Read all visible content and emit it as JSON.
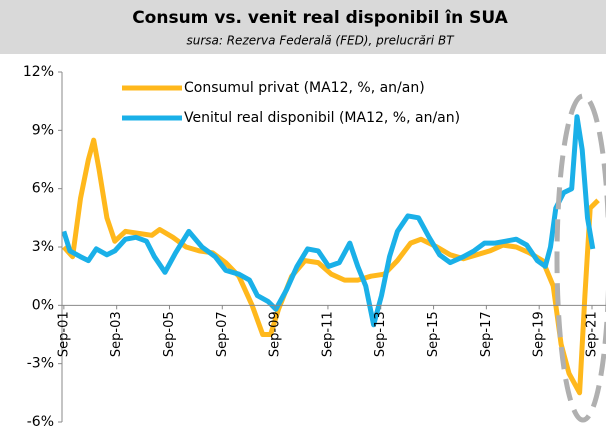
{
  "chart_data": {
    "type": "line",
    "title": "Consum vs. venit real disponibil în SUA",
    "subtitle": "sursa: Rezerva Federală (FED), prelucrări BT",
    "xlim": [
      2001.6,
      2022.2
    ],
    "xticks": [
      {
        "value": 2001.67,
        "label": "Sep-01"
      },
      {
        "value": 2003.67,
        "label": "Sep-03"
      },
      {
        "value": 2005.67,
        "label": "Sep-05"
      },
      {
        "value": 2007.67,
        "label": "Sep-07"
      },
      {
        "value": 2009.67,
        "label": "Sep-09"
      },
      {
        "value": 2011.67,
        "label": "Sep-11"
      },
      {
        "value": 2013.67,
        "label": "Sep-13"
      },
      {
        "value": 2015.67,
        "label": "Sep-15"
      },
      {
        "value": 2017.67,
        "label": "Sep-17"
      },
      {
        "value": 2019.67,
        "label": "Sep-19"
      },
      {
        "value": 2021.67,
        "label": "Sep-21"
      }
    ],
    "ylim": [
      -6,
      12
    ],
    "yticks": [
      {
        "value": 12,
        "label": "12%"
      },
      {
        "value": 9,
        "label": "9%"
      },
      {
        "value": 6,
        "label": "6%"
      },
      {
        "value": 3,
        "label": "3%"
      },
      {
        "value": 0,
        "label": "0%"
      },
      {
        "value": -3,
        "label": "-3%"
      },
      {
        "value": -6,
        "label": "-6%"
      }
    ],
    "legend": "top-left",
    "series": [
      {
        "name": "Consumul privat (MA12, %, an/an)",
        "color": "#ffb81c",
        "x": [
          2001.67,
          2002.0,
          2002.3,
          2002.6,
          2002.8,
          2003.0,
          2003.3,
          2003.6,
          2004.0,
          2004.5,
          2005.0,
          2005.3,
          2005.8,
          2006.3,
          2006.8,
          2007.3,
          2007.8,
          2008.3,
          2008.8,
          2009.2,
          2009.5,
          2009.8,
          2010.3,
          2010.8,
          2011.3,
          2011.8,
          2012.3,
          2012.8,
          2013.3,
          2013.8,
          2014.3,
          2014.8,
          2015.2,
          2015.8,
          2016.3,
          2016.8,
          2017.3,
          2017.8,
          2018.3,
          2018.8,
          2019.3,
          2019.8,
          2020.2,
          2020.5,
          2020.8,
          2021.2,
          2021.4,
          2021.6,
          2021.9
        ],
        "values": [
          3.0,
          2.5,
          5.5,
          7.5,
          8.5,
          7.0,
          4.5,
          3.3,
          3.8,
          3.7,
          3.6,
          3.9,
          3.5,
          3.0,
          2.8,
          2.7,
          2.2,
          1.5,
          0.0,
          -1.5,
          -1.5,
          -0.2,
          1.5,
          2.3,
          2.2,
          1.6,
          1.3,
          1.3,
          1.5,
          1.6,
          2.3,
          3.2,
          3.4,
          3.0,
          2.6,
          2.4,
          2.6,
          2.8,
          3.1,
          3.0,
          2.7,
          2.3,
          1.0,
          -2.0,
          -3.5,
          -4.5,
          0.5,
          5.0,
          5.4
        ]
      },
      {
        "name": "Venitul real disponibil (MA12, %, an/an)",
        "color": "#1ab0e8",
        "x": [
          2001.67,
          2001.9,
          2002.3,
          2002.6,
          2002.9,
          2003.3,
          2003.6,
          2004.0,
          2004.4,
          2004.8,
          2005.1,
          2005.5,
          2005.9,
          2006.4,
          2006.9,
          2007.4,
          2007.8,
          2008.3,
          2008.7,
          2009.0,
          2009.4,
          2009.7,
          2010.1,
          2010.5,
          2010.9,
          2011.3,
          2011.7,
          2012.1,
          2012.5,
          2012.8,
          2013.1,
          2013.4,
          2013.7,
          2014.0,
          2014.3,
          2014.7,
          2015.1,
          2015.5,
          2015.9,
          2016.3,
          2016.8,
          2017.2,
          2017.6,
          2018.0,
          2018.4,
          2018.8,
          2019.2,
          2019.6,
          2019.9,
          2020.1,
          2020.3,
          2020.6,
          2020.9,
          2021.1,
          2021.3,
          2021.5,
          2021.7
        ],
        "values": [
          3.8,
          2.8,
          2.5,
          2.3,
          2.9,
          2.6,
          2.8,
          3.4,
          3.5,
          3.3,
          2.5,
          1.7,
          2.7,
          3.8,
          3.0,
          2.5,
          1.8,
          1.6,
          1.3,
          0.5,
          0.2,
          -0.2,
          0.8,
          2.0,
          2.9,
          2.8,
          2.0,
          2.2,
          3.2,
          2.0,
          1.0,
          -1.0,
          0.5,
          2.5,
          3.8,
          4.6,
          4.5,
          3.5,
          2.6,
          2.2,
          2.5,
          2.8,
          3.2,
          3.2,
          3.3,
          3.4,
          3.1,
          2.3,
          2.0,
          3.0,
          5.0,
          5.8,
          6.0,
          9.7,
          8.0,
          4.5,
          2.9
        ]
      }
    ]
  }
}
